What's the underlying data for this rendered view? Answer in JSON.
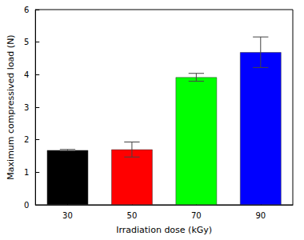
{
  "chart_data": {
    "type": "bar",
    "x_label": "Irradiation dose (kGy)",
    "y_label": "Maximum compressived load (N)",
    "categories": [
      "30",
      "50",
      "70",
      "90"
    ],
    "values": [
      1.68,
      1.7,
      3.92,
      4.69
    ],
    "errors": [
      0.02,
      0.23,
      0.12,
      0.47
    ],
    "colors": [
      "#000000",
      "#ff0000",
      "#00ff00",
      "#0000ff"
    ],
    "ylim": [
      0,
      6
    ],
    "yticks": [
      0,
      1,
      2,
      3,
      4,
      5,
      6
    ],
    "grid": false
  }
}
